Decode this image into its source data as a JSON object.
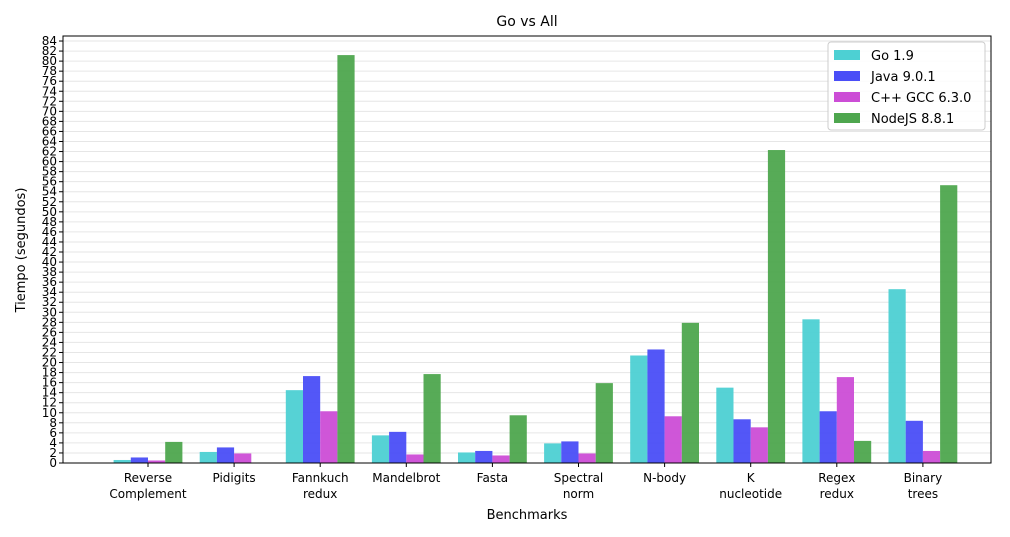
{
  "chart_data": {
    "type": "bar",
    "title": "Go vs All",
    "xlabel": "Benchmarks",
    "ylabel": "Tiempo (segundos)",
    "ylim": [
      0,
      85
    ],
    "ytick_step": 2,
    "grid": true,
    "legend_position": "top-right",
    "categories": [
      [
        "Reverse",
        "Complement"
      ],
      [
        "Pidigits"
      ],
      [
        "Fannkuch",
        "redux"
      ],
      [
        "Mandelbrot"
      ],
      [
        "Fasta"
      ],
      [
        "Spectral",
        "norm"
      ],
      [
        "N-body"
      ],
      [
        "K",
        "nucleotide"
      ],
      [
        "Regex",
        "redux"
      ],
      [
        "Binary",
        "trees"
      ]
    ],
    "series": [
      {
        "name": "Go 1.9",
        "color": "#4dd0d3",
        "values": [
          0.6,
          2.2,
          14.5,
          5.5,
          2.1,
          3.9,
          21.4,
          15.0,
          28.6,
          34.6
        ]
      },
      {
        "name": "Java 9.0.1",
        "color": "#4a4ef7",
        "values": [
          1.1,
          3.1,
          17.3,
          6.2,
          2.4,
          4.3,
          22.6,
          8.7,
          10.3,
          8.4
        ]
      },
      {
        "name": "C++ GCC 6.3.0",
        "color": "#cc4dd6",
        "values": [
          0.5,
          1.9,
          10.3,
          1.7,
          1.5,
          1.9,
          9.3,
          7.1,
          17.1,
          2.4
        ]
      },
      {
        "name": "NodeJS 8.8.1",
        "color": "#4ea64e",
        "values": [
          4.2,
          0,
          81.2,
          17.7,
          9.5,
          15.9,
          27.9,
          62.3,
          4.4,
          55.3
        ]
      }
    ]
  }
}
